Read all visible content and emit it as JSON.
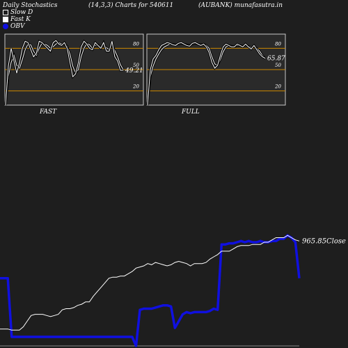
{
  "header": {
    "title": "Daily Stochastics",
    "params": "(14,3,3) Charts for 540611",
    "symbol": "(AUBANK) munafasutra.in"
  },
  "legend": [
    {
      "label": "Slow  D",
      "swatch": "outline"
    },
    {
      "label": "Fast K",
      "swatch": "filled"
    },
    {
      "label": "OBV",
      "swatch": "blue"
    }
  ],
  "colors": {
    "background": "#1e1e1e",
    "panel": "#2a2a2a",
    "level_line": "#cc8800",
    "obv": "#1010e0",
    "close": "#ffffff"
  },
  "chart_data": [
    {
      "type": "line",
      "title": "FAST",
      "yticks": [
        "80",
        "50",
        "20"
      ],
      "levels": [
        80,
        50,
        20
      ],
      "ylim": [
        0,
        100
      ],
      "last_label": "49.21",
      "series": [
        {
          "name": "Slow  D",
          "values": [
            0,
            40,
            60,
            70,
            56,
            52,
            64,
            78,
            86,
            85,
            76,
            70,
            80,
            87,
            86,
            84,
            80,
            82,
            86,
            88,
            86,
            86,
            83,
            72,
            55,
            45,
            50,
            68,
            80,
            87,
            85,
            80,
            84,
            85,
            82,
            86,
            81,
            78,
            85,
            77,
            68,
            57,
            50
          ]
        },
        {
          "name": "Fast K",
          "values": [
            0,
            55,
            80,
            62,
            45,
            60,
            80,
            90,
            88,
            78,
            68,
            73,
            90,
            88,
            84,
            80,
            76,
            88,
            91,
            86,
            84,
            88,
            80,
            60,
            40,
            44,
            60,
            82,
            90,
            86,
            80,
            78,
            88,
            84,
            80,
            88,
            76,
            76,
            90,
            68,
            62,
            49,
            49
          ]
        }
      ]
    },
    {
      "type": "line",
      "title": "FULL",
      "yticks": [
        "80",
        "50",
        "20"
      ],
      "levels": [
        80,
        50,
        20
      ],
      "ylim": [
        0,
        100
      ],
      "last_label": "65.87",
      "series": [
        {
          "name": "Slow  D",
          "values": [
            0,
            40,
            55,
            65,
            72,
            78,
            82,
            84,
            86,
            86,
            85,
            86,
            87,
            86,
            85,
            84,
            86,
            87,
            86,
            85,
            86,
            84,
            80,
            68,
            58,
            56,
            64,
            75,
            82,
            84,
            83,
            82,
            84,
            84,
            83,
            85,
            83,
            81,
            82,
            80,
            76,
            70,
            66
          ]
        },
        {
          "name": "Fast K",
          "values": [
            0,
            50,
            65,
            70,
            78,
            84,
            86,
            88,
            87,
            85,
            84,
            87,
            88,
            86,
            84,
            83,
            87,
            88,
            86,
            84,
            86,
            82,
            74,
            60,
            52,
            56,
            70,
            82,
            86,
            84,
            82,
            82,
            86,
            84,
            82,
            86,
            82,
            79,
            84,
            78,
            72,
            68,
            66
          ]
        }
      ]
    },
    {
      "type": "line",
      "close_label": "965.85Close",
      "series": [
        {
          "name": "OBV",
          "values": [
            60,
            60,
            60,
            8,
            8,
            8,
            8,
            8,
            8,
            8,
            8,
            8,
            8,
            8,
            8,
            8,
            8,
            8,
            8,
            8,
            8,
            8,
            8,
            8,
            8,
            8,
            8,
            8,
            8,
            8,
            8,
            8,
            8,
            8,
            8,
            0,
            32,
            33,
            33,
            33,
            34,
            35,
            36,
            36,
            35,
            16,
            22,
            28,
            30,
            29,
            30,
            30,
            30,
            30,
            31,
            33,
            32,
            90,
            90,
            91,
            91,
            92,
            93,
            92,
            93,
            92,
            92,
            93,
            92,
            92,
            93,
            93,
            95,
            95,
            98,
            96,
            92,
            60
          ]
        },
        {
          "name": "Close",
          "values": [
            15,
            15,
            15,
            14,
            14,
            14,
            17,
            22,
            27,
            28,
            28,
            28,
            27,
            26,
            27,
            28,
            32,
            33,
            33,
            34,
            36,
            37,
            39,
            39,
            44,
            48,
            52,
            56,
            60,
            61,
            61,
            62,
            62,
            64,
            66,
            69,
            70,
            71,
            73,
            72,
            74,
            73,
            72,
            71,
            72,
            74,
            75,
            74,
            73,
            71,
            73,
            73,
            73,
            74,
            77,
            79,
            81,
            84,
            84,
            84,
            86,
            88,
            89,
            89,
            89,
            90,
            90,
            90,
            92,
            92,
            94,
            96,
            96,
            96,
            98,
            96,
            94,
            93
          ]
        }
      ]
    }
  ]
}
